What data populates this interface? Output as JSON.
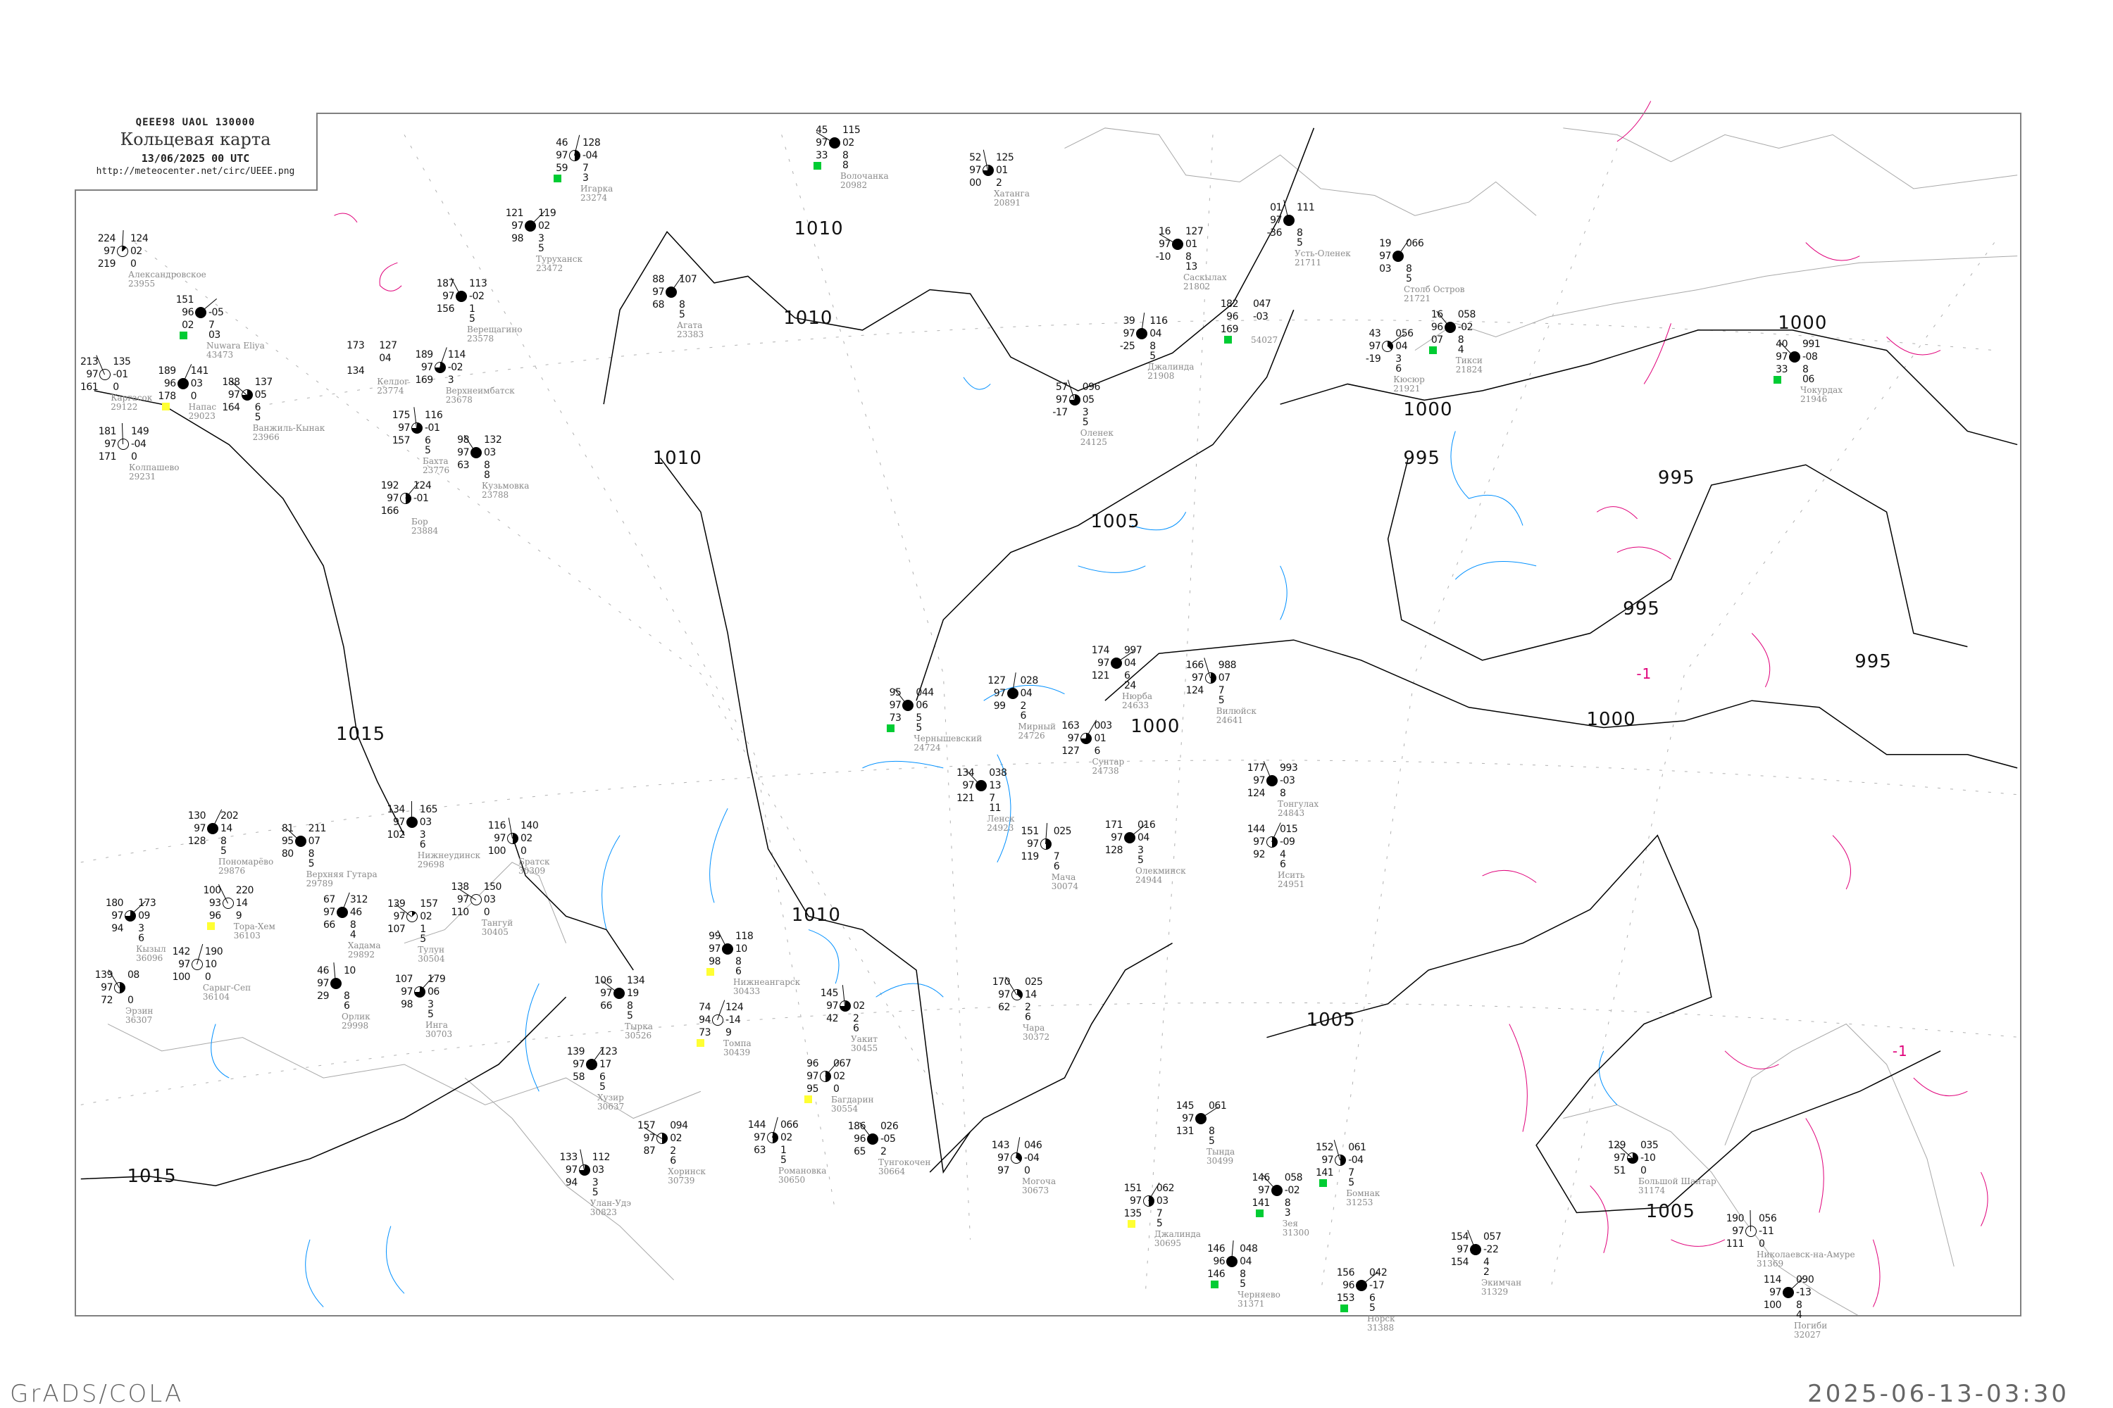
{
  "header": {
    "code_line": "QEEE98   UAOL   130000",
    "title": "Кольцевая карта",
    "date": "13/06/2025 00 UTC",
    "url": "http://meteocenter.net/circ/UEEE.png"
  },
  "footer": {
    "left": "GrADS/COLA",
    "right": "2025-06-13-03:30"
  },
  "colors": {
    "isobar": "#000000",
    "coastline": "#a0a0a0",
    "isotherm_negative": "#e0007a",
    "isotherm_positive": "#0090ff",
    "grid": "#a0a0a0",
    "station_name": "#8a8a8a",
    "precip_marker": "#00cc33",
    "fog_marker": "#ffff33"
  },
  "isobar_labels": [
    "1010",
    "1010",
    "1010",
    "1010",
    "1005",
    "1005",
    "1005",
    "1000",
    "1000",
    "1000",
    "1000",
    "995",
    "995",
    "995",
    "995",
    "1015",
    "1015",
    "-1",
    "-1"
  ],
  "stations": [
    {
      "name": "Саскылах",
      "id": "21802",
      "tl": "16",
      "l": "97",
      "bl": "-10",
      "tr": "127",
      "r": "01",
      "br": [
        "8",
        "13"
      ],
      "cover": 8
    },
    {
      "name": "Усть-Оленек",
      "id": "21711",
      "tl": "01",
      "l": "97",
      "bl": "-36",
      "tr": "111",
      "r": "",
      "br": [
        "8",
        "5"
      ],
      "cover": 8
    },
    {
      "name": "Столб Остров",
      "id": "21721",
      "tl": "19",
      "l": "97",
      "bl": "03",
      "tr": "066",
      "r": "",
      "br": [
        "8",
        "5"
      ],
      "cover": 8
    },
    {
      "name": "Тикси",
      "id": "21824",
      "tl": "16",
      "l": "96",
      "bl": "07",
      "tr": "058",
      "r": "-02",
      "br": [
        "8",
        "4"
      ],
      "cover": 8,
      "marker": "precip"
    },
    {
      "name": "Джалинда",
      "id": "21908",
      "tl": "39",
      "l": "97",
      "bl": "-25",
      "tr": "116",
      "r": "04",
      "br": [
        "8",
        "5"
      ],
      "cover": 8
    },
    {
      "name": "Кюсюр",
      "id": "21921",
      "tl": "43",
      "l": "97",
      "bl": "-19",
      "tr": "056",
      "r": "04",
      "br": [
        "3",
        "6"
      ],
      "cover": 3
    },
    {
      "name": "Оленек",
      "id": "24125",
      "tl": "57",
      "l": "97",
      "bl": "-17",
      "tr": "096",
      "r": "05",
      "br": [
        "3",
        "5"
      ],
      "cover": 6
    },
    {
      "name": "",
      "id": "54027",
      "tl": "182",
      "l": "96",
      "bl": "169",
      "tr": "047",
      "r": "-03",
      "br": [],
      "cover": -1,
      "marker": "precip"
    },
    {
      "name": "Чокурдах",
      "id": "21946",
      "tl": "40",
      "l": "97",
      "bl": "33",
      "tr": "991",
      "r": "-08",
      "br": [
        "8",
        "06"
      ],
      "cover": 8,
      "marker": "precip"
    },
    {
      "name": "Александровское",
      "id": "23955",
      "tl": "224",
      "l": "97",
      "bl": "219",
      "tr": "124",
      "r": "02",
      "br": [
        "0"
      ],
      "cover": 1
    },
    {
      "name": "Nuwara Eliya",
      "id": "43473",
      "tl": "151",
      "l": "96",
      "bl": "02",
      "tr": "",
      "r": "-05",
      "br": [
        "7",
        "03"
      ],
      "cover": 8,
      "marker": "precip"
    },
    {
      "name": "Каргасок",
      "id": "29122",
      "tl": "213",
      "l": "97",
      "bl": "161",
      "tr": "135",
      "r": "-01",
      "br": [
        "0"
      ],
      "cover": 0
    },
    {
      "name": "Напас",
      "id": "29023",
      "tl": "189",
      "l": "96",
      "bl": "178",
      "tr": "141",
      "r": "03",
      "br": [
        "0"
      ],
      "cover": 8,
      "marker": "fog"
    },
    {
      "name": "Ванжиль-Кынак",
      "id": "23966",
      "tl": "188",
      "l": "97",
      "bl": "164",
      "tr": "137",
      "r": "05",
      "br": [
        "6",
        "5"
      ],
      "cover": 6
    },
    {
      "name": "Колпашево",
      "id": "29231",
      "tl": "181",
      "l": "97",
      "bl": "171",
      "tr": "149",
      "r": "-04",
      "br": [
        "0"
      ],
      "cover": 0
    },
    {
      "name": "Туруханск",
      "id": "23472",
      "tl": "121",
      "l": "97",
      "bl": "98",
      "tr": "119",
      "r": "02",
      "br": [
        "3",
        "5"
      ],
      "cover": 8
    },
    {
      "name": "Верещагино",
      "id": "23578",
      "tl": "187",
      "l": "97",
      "bl": "156",
      "tr": "113",
      "r": "-02",
      "br": [
        "1",
        "5"
      ],
      "cover": 8
    },
    {
      "name": "Верхнеимбатск",
      "id": "23678",
      "tl": "189",
      "l": "97",
      "bl": "169",
      "tr": "114",
      "r": "-02",
      "br": [
        "3"
      ],
      "cover": 6
    },
    {
      "name": "Келлог",
      "id": "23774",
      "tl": "173",
      "l": "",
      "bl": "134",
      "tr": "127",
      "r": "04",
      "br": [],
      "cover": -1
    },
    {
      "name": "Бахта",
      "id": "23776",
      "tl": "175",
      "l": "97",
      "bl": "157",
      "tr": "116",
      "r": "-01",
      "br": [
        "6",
        "5"
      ],
      "cover": 6
    },
    {
      "name": "Бор",
      "id": "23884",
      "tl": "192",
      "l": "97",
      "bl": "166",
      "tr": "124",
      "r": "-01",
      "br": [],
      "cover": 4
    },
    {
      "name": "Кузьмовка",
      "id": "23788",
      "tl": "98",
      "l": "97",
      "bl": "63",
      "tr": "132",
      "r": "03",
      "br": [
        "8",
        "8"
      ],
      "cover": 8
    },
    {
      "name": "Игарка",
      "id": "23274",
      "tl": "46",
      "l": "97",
      "bl": "59",
      "tr": "128",
      "r": "-04",
      "br": [
        "7",
        "3"
      ],
      "cover": 4,
      "marker": "precip"
    },
    {
      "name": "Волочанка",
      "id": "20982",
      "tl": "45",
      "l": "97",
      "bl": "33",
      "tr": "115",
      "r": "02",
      "br": [
        "8",
        "8"
      ],
      "cover": 8,
      "marker": "precip"
    },
    {
      "name": "Хатанга",
      "id": "20891",
      "tl": "52",
      "l": "97",
      "bl": "00",
      "tr": "125",
      "r": "01",
      "br": [
        "2"
      ],
      "cover": 6
    },
    {
      "name": "Агата",
      "id": "23383",
      "tl": "88",
      "l": "97",
      "bl": "68",
      "tr": "107",
      "r": "",
      "br": [
        "8",
        "5"
      ],
      "cover": 8
    },
    {
      "name": "Чернышевский",
      "id": "24724",
      "tl": "95",
      "l": "97",
      "bl": "73",
      "tr": "044",
      "r": "06",
      "br": [
        "5",
        "5"
      ],
      "cover": 8,
      "marker": "precip"
    },
    {
      "name": "Мирный",
      "id": "24726",
      "tl": "127",
      "l": "97",
      "bl": "99",
      "tr": "028",
      "r": "04",
      "br": [
        "2",
        "6"
      ],
      "cover": 8
    },
    {
      "name": "Нюрба",
      "id": "24633",
      "tl": "174",
      "l": "97",
      "bl": "121",
      "tr": "997",
      "r": "04",
      "br": [
        "6",
        "24"
      ],
      "cover": 8
    },
    {
      "name": "Вилюйск",
      "id": "24641",
      "tl": "166",
      "l": "97",
      "bl": "124",
      "tr": "988",
      "r": "07",
      "br": [
        "7",
        "5"
      ],
      "cover": 4
    },
    {
      "name": "Сунтар",
      "id": "24738",
      "tl": "163",
      "l": "97",
      "bl": "127",
      "tr": "003",
      "r": "01",
      "br": [
        "6"
      ],
      "cover": 6
    },
    {
      "name": "Ленск",
      "id": "24923",
      "tl": "134",
      "l": "97",
      "bl": "121",
      "tr": "038",
      "r": "13",
      "br": [
        "7",
        "11"
      ],
      "cover": 8
    },
    {
      "name": "Мача",
      "id": "30074",
      "tl": "151",
      "l": "97",
      "bl": "119",
      "tr": "025",
      "r": "",
      "br": [
        "7",
        "6"
      ],
      "cover": 4
    },
    {
      "name": "Олекминск",
      "id": "24944",
      "tl": "171",
      "l": "97",
      "bl": "128",
      "tr": "016",
      "r": "04",
      "br": [
        "3",
        "5"
      ],
      "cover": 8
    },
    {
      "name": "Тонгулах",
      "id": "24843",
      "tl": "177",
      "l": "97",
      "bl": "124",
      "tr": "993",
      "r": "-03",
      "br": [
        "8"
      ],
      "cover": 8
    },
    {
      "name": "Исить",
      "id": "24951",
      "tl": "144",
      "l": "97",
      "bl": "92",
      "tr": "015",
      "r": "-09",
      "br": [
        "4",
        "6"
      ],
      "cover": 4
    },
    {
      "name": "Большой Шантар",
      "id": "31174",
      "tl": "129",
      "l": "97",
      "bl": "51",
      "tr": "035",
      "r": "-10",
      "br": [
        "0"
      ],
      "cover": 6
    },
    {
      "name": "Николаевск-на-Амуре",
      "id": "31369",
      "tl": "190",
      "l": "97",
      "bl": "111",
      "tr": "056",
      "r": "-11",
      "br": [
        "0"
      ],
      "cover": 0
    },
    {
      "name": "Погиби",
      "id": "32027",
      "tl": "114",
      "l": "97",
      "bl": "100",
      "tr": "090",
      "r": "-13",
      "br": [
        "8",
        "4"
      ],
      "cover": 8
    },
    {
      "name": "Нижнеангарск",
      "id": "30433",
      "tl": "99",
      "l": "97",
      "bl": "98",
      "tr": "118",
      "r": "10",
      "br": [
        "8",
        "6"
      ],
      "cover": 8,
      "marker": "fog"
    },
    {
      "name": "Томпа",
      "id": "30439",
      "tl": "74",
      "l": "94",
      "bl": "73",
      "tr": "124",
      "r": "-14",
      "br": [
        "9"
      ],
      "cover": 9,
      "marker": "fog"
    },
    {
      "name": "Тырка",
      "id": "30526",
      "tl": "106",
      "l": "97",
      "bl": "66",
      "tr": "134",
      "r": "19",
      "br": [
        "8",
        "5"
      ],
      "cover": 8
    },
    {
      "name": "Уакит",
      "id": "30455",
      "tl": "145",
      "l": "97",
      "bl": "42",
      "tr": "",
      "r": "02",
      "br": [
        "2",
        "6"
      ],
      "cover": 6
    },
    {
      "name": "Багдарин",
      "id": "30554",
      "tl": "96",
      "l": "97",
      "bl": "95",
      "tr": "067",
      "r": "02",
      "br": [
        "0"
      ],
      "cover": 4,
      "marker": "fog"
    },
    {
      "name": "Чара",
      "id": "30372",
      "tl": "170",
      "l": "97",
      "bl": "62",
      "tr": "025",
      "r": "14",
      "br": [
        "2",
        "6"
      ],
      "cover": 3
    },
    {
      "name": "Романовка",
      "id": "30650",
      "tl": "144",
      "l": "97",
      "bl": "63",
      "tr": "066",
      "r": "02",
      "br": [
        "1",
        "5"
      ],
      "cover": 4
    },
    {
      "name": "Хоринск",
      "id": "30739",
      "tl": "157",
      "l": "97",
      "bl": "87",
      "tr": "094",
      "r": "02",
      "br": [
        "2",
        "6"
      ],
      "cover": 4
    },
    {
      "name": "Улан-Удэ",
      "id": "30823",
      "tl": "133",
      "l": "97",
      "bl": "94",
      "tr": "112",
      "r": "03",
      "br": [
        "3",
        "5"
      ],
      "cover": 6
    },
    {
      "name": "Хузир",
      "id": "30637",
      "tl": "139",
      "l": "97",
      "bl": "58",
      "tr": "123",
      "r": "17",
      "br": [
        "6",
        "5"
      ],
      "cover": 8
    },
    {
      "name": "Тунгокочен",
      "id": "30664",
      "tl": "186",
      "l": "96",
      "bl": "65",
      "tr": "026",
      "r": "-05",
      "br": [
        "2"
      ],
      "cover": 8
    },
    {
      "name": "Могоча",
      "id": "30673",
      "tl": "143",
      "l": "97",
      "bl": "97",
      "tr": "046",
      "r": "-04",
      "br": [
        "0"
      ],
      "cover": 3
    },
    {
      "name": "Тында",
      "id": "30499",
      "tl": "145",
      "l": "97",
      "bl": "131",
      "tr": "061",
      "r": "",
      "br": [
        "8",
        "5"
      ],
      "cover": 8
    },
    {
      "name": "Бомнак",
      "id": "31253",
      "tl": "152",
      "l": "97",
      "bl": "141",
      "tr": "061",
      "r": "-04",
      "br": [
        "7",
        "5"
      ],
      "cover": 4,
      "marker": "precip"
    },
    {
      "name": "Джалинда",
      "id": "30695",
      "tl": "151",
      "l": "97",
      "bl": "135",
      "tr": "062",
      "r": "03",
      "br": [
        "7",
        "5"
      ],
      "cover": 4,
      "marker": "fog"
    },
    {
      "name": "Зея",
      "id": "31300",
      "tl": "146",
      "l": "97",
      "bl": "141",
      "tr": "058",
      "r": "-02",
      "br": [
        "8",
        "3"
      ],
      "cover": 8,
      "marker": "precip"
    },
    {
      "name": "Черняево",
      "id": "31371",
      "tl": "146",
      "l": "96",
      "bl": "146",
      "tr": "048",
      "r": "04",
      "br": [
        "8",
        "5"
      ],
      "cover": 8,
      "marker": "precip"
    },
    {
      "name": "Норск",
      "id": "31388",
      "tl": "156",
      "l": "96",
      "bl": "153",
      "tr": "042",
      "r": "-17",
      "br": [
        "6",
        "5"
      ],
      "cover": 8,
      "marker": "precip"
    },
    {
      "name": "Экимчан",
      "id": "31329",
      "tl": "154",
      "l": "97",
      "bl": "154",
      "tr": "057",
      "r": "-22",
      "br": [
        "4",
        "2"
      ],
      "cover": 8
    },
    {
      "name": "Пономарёво",
      "id": "29876",
      "tl": "130",
      "l": "97",
      "bl": "128",
      "tr": "202",
      "r": "14",
      "br": [
        "8",
        "5"
      ],
      "cover": 8
    },
    {
      "name": "Верхняя Гутара",
      "id": "29789",
      "tl": "81",
      "l": "95",
      "bl": "80",
      "tr": "211",
      "r": "07",
      "br": [
        "8",
        "5"
      ],
      "cover": 8
    },
    {
      "name": "Нижнеудинск",
      "id": "29698",
      "tl": "134",
      "l": "97",
      "bl": "102",
      "tr": "165",
      "r": "03",
      "br": [
        "3",
        "6"
      ],
      "cover": 8
    },
    {
      "name": "Кызыл",
      "id": "36096",
      "tl": "180",
      "l": "97",
      "bl": "94",
      "tr": "173",
      "r": "09",
      "br": [
        "3",
        "6"
      ],
      "cover": 6
    },
    {
      "name": "Тора-Хем",
      "id": "36103",
      "tl": "100",
      "l": "93",
      "bl": "96",
      "tr": "220",
      "r": "14",
      "br": [
        "9"
      ],
      "cover": 9,
      "marker": "fog"
    },
    {
      "name": "Хадама",
      "id": "29892",
      "tl": "67",
      "l": "97",
      "bl": "66",
      "tr": "312",
      "r": "46",
      "br": [
        "8",
        "4"
      ],
      "cover": 8
    },
    {
      "name": "Тулун",
      "id": "30504",
      "tl": "139",
      "l": "97",
      "bl": "107",
      "tr": "157",
      "r": "02",
      "br": [
        "1",
        "5"
      ],
      "cover": 1
    },
    {
      "name": "Орлик",
      "id": "29998",
      "tl": "46",
      "l": "97",
      "bl": "29",
      "tr": "10",
      "r": "",
      "br": [
        "8",
        "6"
      ],
      "cover": 8
    },
    {
      "name": "Инга",
      "id": "30703",
      "tl": "107",
      "l": "97",
      "bl": "98",
      "tr": "179",
      "r": "06",
      "br": [
        "3",
        "5"
      ],
      "cover": 6
    },
    {
      "name": "Эрзин",
      "id": "36307",
      "tl": "139",
      "l": "97",
      "bl": "72",
      "tr": "08",
      "r": "",
      "br": [
        "0"
      ],
      "cover": 4
    },
    {
      "name": "Сарыг-Сеп",
      "id": "36104",
      "tl": "142",
      "l": "97",
      "bl": "100",
      "tr": "190",
      "r": "10",
      "br": [
        "0"
      ],
      "cover": 0
    },
    {
      "name": "Тангуй",
      "id": "30405",
      "tl": "138",
      "l": "97",
      "bl": "110",
      "tr": "150",
      "r": "03",
      "br": [
        "0"
      ],
      "cover": 0
    },
    {
      "name": "Братск",
      "id": "30309",
      "tl": "116",
      "l": "97",
      "bl": "100",
      "tr": "140",
      "r": "02",
      "br": [
        "0"
      ],
      "cover": 4
    }
  ]
}
